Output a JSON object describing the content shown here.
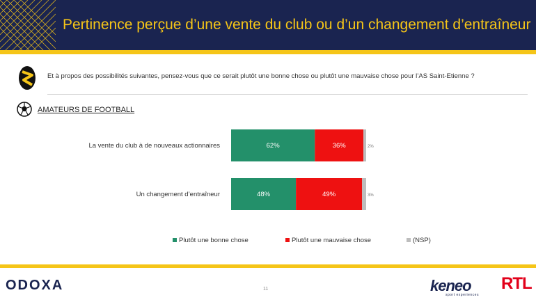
{
  "header": {
    "title": "Pertinence perçue d’une vente du club ou d’un changement d’entraîneur"
  },
  "question": {
    "text": "Et à propos des possibilités suivantes, pensez-vous que ce serait plutôt une bonne chose ou plutôt une mauvaise chose pour l’AS Saint-Etienne ?"
  },
  "segment": {
    "label": "AMATEURS DE FOOTBALL"
  },
  "colors": {
    "good": "#23906a",
    "bad": "#ee1111",
    "nsp": "#bdbdbd",
    "navy": "#1a2450",
    "gold": "#f5c518"
  },
  "chart_data": {
    "type": "bar",
    "orientation": "horizontal",
    "stacked": true,
    "categories": [
      "La vente du club à de nouveaux actionnaires",
      "Un changement d’entraîneur"
    ],
    "series": [
      {
        "name": "Plutôt une bonne chose",
        "values": [
          62,
          48
        ],
        "labels": [
          "62%",
          "48%"
        ]
      },
      {
        "name": "Plutôt une mauvaise chose",
        "values": [
          36,
          49
        ],
        "labels": [
          "36%",
          "49%"
        ]
      },
      {
        "name": "(NSP)",
        "values": [
          2,
          3
        ],
        "labels": [
          "2%",
          "3%"
        ]
      }
    ],
    "legend_position": "bottom",
    "grid": false
  },
  "footer": {
    "page_number": "11",
    "logo_odoxa": "ODOXA",
    "logo_keneo": "keneo",
    "logo_keneo_sub": "sport experiences",
    "logo_rtl": "RTL"
  }
}
